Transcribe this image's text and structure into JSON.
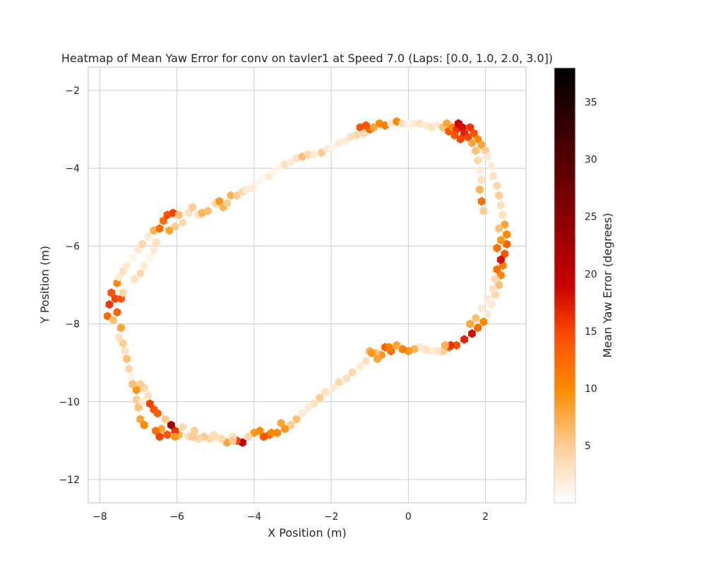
{
  "chart_data": {
    "type": "heatmap",
    "title": "Heatmap of Mean Yaw Error for conv on tavler1 at Speed 7.0 (Laps: [0.0, 1.0, 2.0, 3.0])",
    "xlabel": "X Position (m)",
    "ylabel": "Y Position (m)",
    "colorbar_label": "Mean Yaw Error (degrees)",
    "xlim": [
      -8.3,
      3.05
    ],
    "ylim": [
      -12.6,
      -1.4
    ],
    "xticks": [
      -8,
      -6,
      -4,
      -2,
      0,
      2
    ],
    "xtick_labels": [
      "−8",
      "−6",
      "−4",
      "−2",
      "0",
      "2"
    ],
    "yticks": [
      -2,
      -4,
      -6,
      -8,
      -10,
      -12
    ],
    "ytick_labels": [
      "−2",
      "−4",
      "−6",
      "−8",
      "−10",
      "−12"
    ],
    "colorbar_range": [
      0,
      38
    ],
    "colorbar_ticks": [
      5,
      10,
      15,
      20,
      25,
      30,
      35
    ],
    "grid": true,
    "colormap": "gist_heat_r",
    "colormap_stops": [
      "#ffffff",
      "#ffd2a0",
      "#ff8c00",
      "#ff4e00",
      "#c80000",
      "#780000",
      "#000000"
    ],
    "track_points": [
      [
        -7.7,
        -7.2,
        14
      ],
      [
        -7.75,
        -7.5,
        16
      ],
      [
        -7.8,
        -7.8,
        12
      ],
      [
        -7.65,
        -7.9,
        6
      ],
      [
        -7.55,
        -7.7,
        13
      ],
      [
        -7.6,
        -7.35,
        15
      ],
      [
        -7.45,
        -7.35,
        14
      ],
      [
        -7.4,
        -7.2,
        4
      ],
      [
        -7.55,
        -6.95,
        10
      ],
      [
        -7.5,
        -6.8,
        2
      ],
      [
        -7.4,
        -6.65,
        3
      ],
      [
        -7.3,
        -6.5,
        2
      ],
      [
        -7.15,
        -6.3,
        1
      ],
      [
        -7.0,
        -6.1,
        2
      ],
      [
        -6.9,
        -5.95,
        4
      ],
      [
        -6.75,
        -5.75,
        2
      ],
      [
        -6.6,
        -5.6,
        7
      ],
      [
        -6.45,
        -5.55,
        12
      ],
      [
        -6.35,
        -5.35,
        12
      ],
      [
        -6.25,
        -5.2,
        14
      ],
      [
        -6.1,
        -5.15,
        15
      ],
      [
        -5.95,
        -5.2,
        6
      ],
      [
        -5.85,
        -5.4,
        4
      ],
      [
        -5.7,
        -5.15,
        3
      ],
      [
        -5.6,
        -5.0,
        5
      ],
      [
        -5.45,
        -5.2,
        3
      ],
      [
        -5.35,
        -5.15,
        7
      ],
      [
        -5.2,
        -5.1,
        6
      ],
      [
        -5.0,
        -4.9,
        4
      ],
      [
        -4.9,
        -4.85,
        9
      ],
      [
        -4.8,
        -5.0,
        7
      ],
      [
        -4.7,
        -4.9,
        5
      ],
      [
        -4.6,
        -4.7,
        7
      ],
      [
        -4.45,
        -4.7,
        5
      ],
      [
        -4.3,
        -4.6,
        4
      ],
      [
        -4.2,
        -4.55,
        2
      ],
      [
        -4.05,
        -4.5,
        2
      ],
      [
        -3.9,
        -4.35,
        1
      ],
      [
        -3.75,
        -4.25,
        1
      ],
      [
        -3.6,
        -4.2,
        2
      ],
      [
        -3.5,
        -4.1,
        1
      ],
      [
        -3.35,
        -4.0,
        1
      ],
      [
        -3.2,
        -3.9,
        3
      ],
      [
        -3.05,
        -3.85,
        2
      ],
      [
        -2.9,
        -3.75,
        3
      ],
      [
        -2.75,
        -3.7,
        6
      ],
      [
        -2.6,
        -3.65,
        4
      ],
      [
        -2.45,
        -3.65,
        2
      ],
      [
        -2.25,
        -3.6,
        5
      ],
      [
        -2.1,
        -3.5,
        2
      ],
      [
        -1.95,
        -3.45,
        1
      ],
      [
        -1.8,
        -3.35,
        2
      ],
      [
        -1.65,
        -3.3,
        2
      ],
      [
        -1.5,
        -3.2,
        3
      ],
      [
        -1.35,
        -3.15,
        4
      ],
      [
        -1.25,
        -2.95,
        14
      ],
      [
        -1.15,
        -3.1,
        4
      ],
      [
        -1.0,
        -3.0,
        12
      ],
      [
        -0.9,
        -2.95,
        8
      ],
      [
        -0.75,
        -2.85,
        10
      ],
      [
        -0.6,
        -2.9,
        11
      ],
      [
        -0.45,
        -2.85,
        2
      ],
      [
        -0.3,
        -2.8,
        10
      ],
      [
        -0.15,
        -2.85,
        3
      ],
      [
        0.0,
        -2.9,
        1
      ],
      [
        0.15,
        -2.85,
        2
      ],
      [
        0.3,
        -2.85,
        3
      ],
      [
        0.45,
        -2.9,
        2
      ],
      [
        0.6,
        -2.95,
        3
      ],
      [
        0.75,
        -2.9,
        2
      ],
      [
        0.9,
        -2.95,
        6
      ],
      [
        1.0,
        -2.85,
        8
      ],
      [
        1.05,
        -3.05,
        14
      ],
      [
        1.15,
        -2.95,
        10
      ],
      [
        1.25,
        -3.0,
        16
      ],
      [
        1.3,
        -2.85,
        19
      ],
      [
        1.4,
        -2.95,
        18
      ],
      [
        1.45,
        -3.1,
        17
      ],
      [
        1.55,
        -3.2,
        15
      ],
      [
        1.6,
        -2.95,
        16
      ],
      [
        1.7,
        -3.1,
        14
      ],
      [
        1.8,
        -3.25,
        10
      ],
      [
        1.9,
        -3.4,
        8
      ],
      [
        2.0,
        -3.55,
        5
      ],
      [
        2.05,
        -3.7,
        2
      ],
      [
        2.15,
        -3.95,
        2
      ],
      [
        2.2,
        -4.2,
        3
      ],
      [
        2.3,
        -4.45,
        4
      ],
      [
        2.35,
        -4.7,
        5
      ],
      [
        2.4,
        -4.95,
        3
      ],
      [
        2.45,
        -5.2,
        3
      ],
      [
        2.5,
        -5.45,
        8
      ],
      [
        2.55,
        -5.7,
        10
      ],
      [
        2.55,
        -5.95,
        13
      ],
      [
        2.5,
        -6.2,
        14
      ],
      [
        2.45,
        -6.5,
        11
      ],
      [
        2.4,
        -6.75,
        10
      ],
      [
        2.35,
        -7.0,
        6
      ],
      [
        2.25,
        -7.25,
        4
      ],
      [
        2.15,
        -7.5,
        2
      ],
      [
        2.05,
        -7.75,
        2
      ],
      [
        1.95,
        -7.95,
        10
      ],
      [
        1.8,
        -8.1,
        12
      ],
      [
        1.65,
        -8.25,
        18
      ],
      [
        1.45,
        -8.4,
        17
      ],
      [
        1.25,
        -8.55,
        14
      ],
      [
        1.05,
        -8.6,
        12
      ],
      [
        0.9,
        -8.7,
        5
      ],
      [
        0.75,
        -8.7,
        3
      ],
      [
        0.6,
        -8.7,
        2
      ],
      [
        0.45,
        -8.65,
        3
      ],
      [
        0.3,
        -8.6,
        2
      ],
      [
        0.15,
        -8.65,
        7
      ],
      [
        0.0,
        -8.7,
        9
      ],
      [
        -0.15,
        -8.65,
        11
      ],
      [
        -0.3,
        -8.55,
        8
      ],
      [
        -0.45,
        -8.7,
        12
      ],
      [
        -0.6,
        -8.6,
        13
      ],
      [
        -0.7,
        -8.8,
        9
      ],
      [
        -0.85,
        -8.75,
        6
      ],
      [
        -1.0,
        -8.7,
        7
      ],
      [
        -1.1,
        -8.95,
        3
      ],
      [
        -1.25,
        -9.1,
        2
      ],
      [
        -1.45,
        -9.25,
        4
      ],
      [
        -1.6,
        -9.4,
        3
      ],
      [
        -1.8,
        -9.5,
        4
      ],
      [
        -1.95,
        -9.65,
        2
      ],
      [
        -2.15,
        -9.75,
        3
      ],
      [
        -2.3,
        -9.9,
        5
      ],
      [
        -2.45,
        -10.05,
        3
      ],
      [
        -2.6,
        -10.15,
        2
      ],
      [
        -2.75,
        -10.3,
        2
      ],
      [
        -2.9,
        -10.45,
        6
      ],
      [
        -3.05,
        -10.6,
        5
      ],
      [
        -3.2,
        -10.7,
        9
      ],
      [
        -3.4,
        -10.8,
        10
      ],
      [
        -3.6,
        -10.85,
        13
      ],
      [
        -3.75,
        -10.9,
        14
      ],
      [
        -3.85,
        -10.75,
        10
      ],
      [
        -4.0,
        -10.8,
        9
      ],
      [
        -4.15,
        -10.9,
        4
      ],
      [
        -4.3,
        -11.05,
        20
      ],
      [
        -4.45,
        -11.0,
        15
      ],
      [
        -4.55,
        -10.9,
        3
      ],
      [
        -4.7,
        -11.05,
        8
      ],
      [
        -4.85,
        -10.95,
        4
      ],
      [
        -5.0,
        -10.9,
        3
      ],
      [
        -5.15,
        -10.95,
        4
      ],
      [
        -5.3,
        -10.9,
        5
      ],
      [
        -5.45,
        -10.95,
        4
      ],
      [
        -5.55,
        -10.75,
        5
      ],
      [
        -5.7,
        -10.9,
        3
      ],
      [
        -5.85,
        -10.65,
        4
      ],
      [
        -5.95,
        -10.85,
        7
      ],
      [
        -6.05,
        -10.75,
        16
      ],
      [
        -6.15,
        -10.6,
        22
      ],
      [
        -6.25,
        -10.85,
        14
      ],
      [
        -6.3,
        -10.45,
        5
      ],
      [
        -6.4,
        -10.7,
        8
      ],
      [
        -6.45,
        -10.9,
        15
      ],
      [
        -6.55,
        -10.75,
        12
      ],
      [
        -6.6,
        -10.2,
        14
      ],
      [
        -6.7,
        -10.05,
        15
      ],
      [
        -6.75,
        -9.85,
        3
      ],
      [
        -6.85,
        -9.65,
        4
      ],
      [
        -6.95,
        -9.55,
        5
      ],
      [
        -7.05,
        -9.7,
        9
      ],
      [
        -7.15,
        -9.55,
        6
      ],
      [
        -7.2,
        -9.35,
        1
      ],
      [
        -7.25,
        -9.15,
        4
      ],
      [
        -7.3,
        -8.9,
        6
      ],
      [
        -7.35,
        -8.7,
        3
      ],
      [
        -7.4,
        -8.5,
        5
      ],
      [
        -7.45,
        -8.1,
        8
      ],
      [
        -7.5,
        -8.35,
        3
      ],
      [
        -6.95,
        -10.45,
        8
      ],
      [
        -6.85,
        -10.6,
        10
      ],
      [
        -7.0,
        -10.15,
        6
      ],
      [
        -7.05,
        -9.95,
        5
      ],
      [
        -6.5,
        -10.3,
        13
      ],
      [
        -6.9,
        -10.0,
        2
      ],
      [
        -6.55,
        -5.9,
        3
      ],
      [
        -6.6,
        -6.1,
        2
      ],
      [
        -6.7,
        -6.3,
        1
      ],
      [
        -6.85,
        -6.5,
        2
      ],
      [
        -6.95,
        -6.7,
        4
      ],
      [
        -7.1,
        -6.85,
        3
      ],
      [
        -6.05,
        -5.5,
        5
      ],
      [
        -6.2,
        -5.6,
        8
      ],
      [
        -1.1,
        -2.9,
        14
      ],
      [
        1.2,
        -3.15,
        14
      ],
      [
        1.35,
        -3.25,
        15
      ],
      [
        1.65,
        -3.35,
        8
      ],
      [
        1.75,
        -3.55,
        6
      ],
      [
        1.8,
        -3.8,
        4
      ],
      [
        1.85,
        -4.05,
        2
      ],
      [
        1.9,
        -4.3,
        3
      ],
      [
        1.85,
        -4.55,
        7
      ],
      [
        1.9,
        -4.85,
        12
      ],
      [
        1.95,
        -5.1,
        5
      ],
      [
        2.35,
        -5.55,
        6
      ],
      [
        2.4,
        -5.85,
        9
      ],
      [
        2.3,
        -6.05,
        12
      ],
      [
        2.4,
        -6.35,
        18
      ],
      [
        2.3,
        -6.6,
        12
      ],
      [
        2.25,
        -6.85,
        4
      ],
      [
        2.2,
        -7.1,
        3
      ],
      [
        2.05,
        -7.35,
        2
      ],
      [
        1.9,
        -7.6,
        2
      ],
      [
        1.75,
        -7.85,
        6
      ],
      [
        1.6,
        -8.0,
        8
      ],
      [
        1.1,
        -8.55,
        16
      ],
      [
        0.95,
        -8.55,
        7
      ],
      [
        -0.5,
        -8.6,
        11
      ],
      [
        -0.95,
        -8.75,
        9
      ],
      [
        -0.8,
        -8.9,
        8
      ],
      [
        -3.55,
        -10.8,
        10
      ],
      [
        -3.3,
        -10.55,
        8
      ],
      [
        -4.55,
        -11.0,
        5
      ],
      [
        -5.05,
        -10.85,
        3
      ],
      [
        -5.6,
        -10.9,
        5
      ],
      [
        -6.05,
        -10.9,
        9
      ]
    ]
  }
}
